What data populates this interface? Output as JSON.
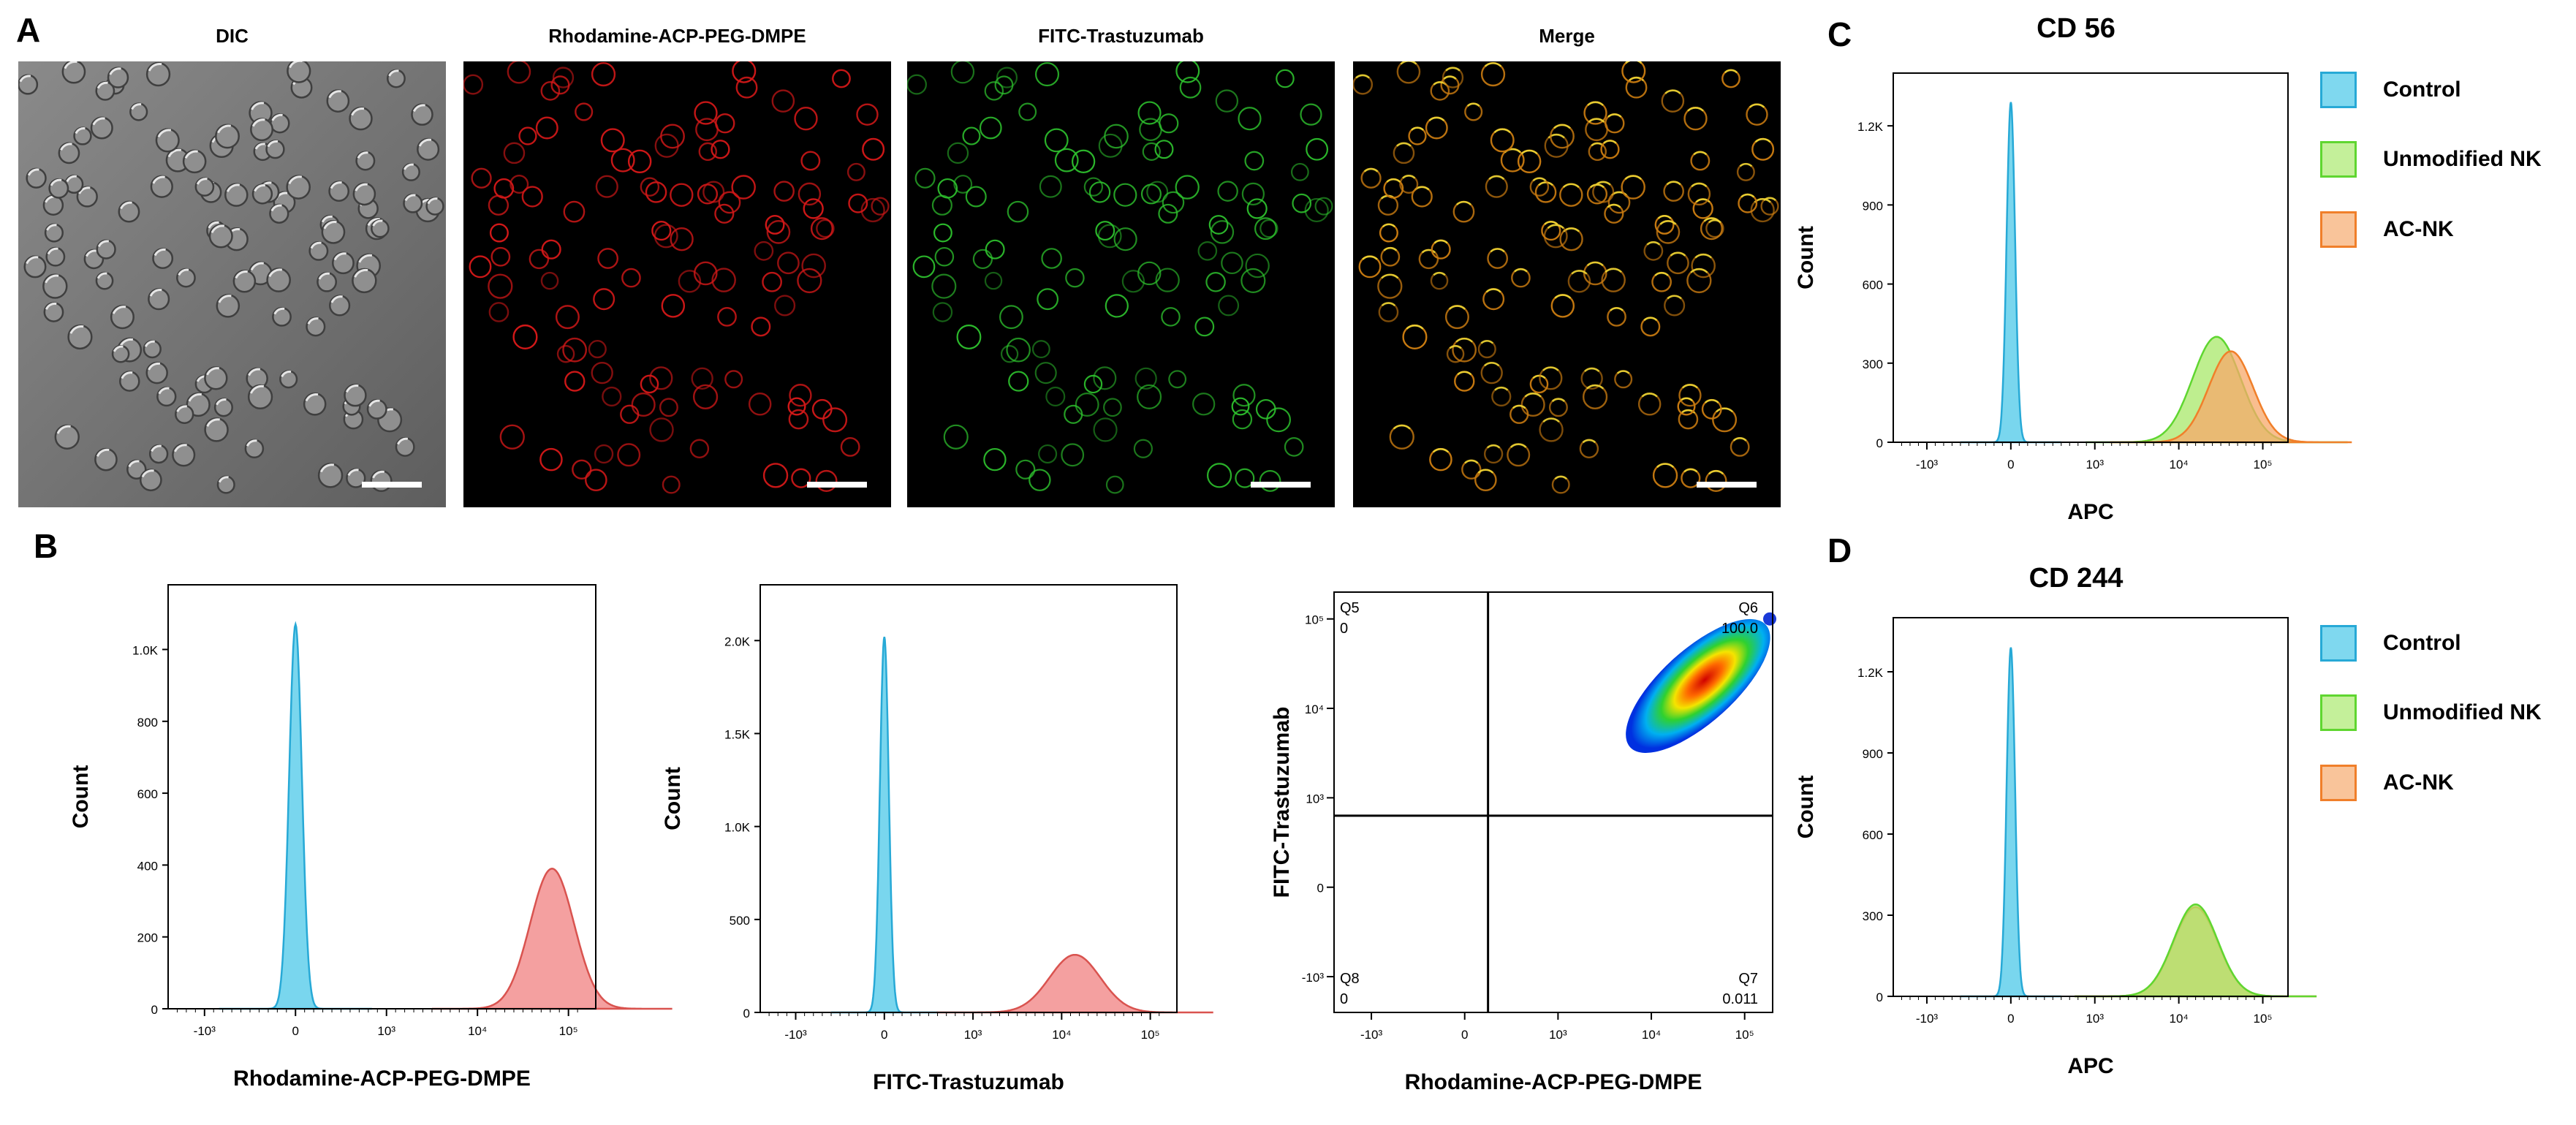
{
  "panel_labels": {
    "a": "A",
    "b": "B",
    "c": "C",
    "d": "D"
  },
  "micro_titles": [
    "DIC",
    "Rhodamine-ACP-PEG-DMPE",
    "FITC-Trastuzumab",
    "Merge"
  ],
  "colors": {
    "control": "#4cc8e8",
    "control_edge": "#27a9d6",
    "red": "#f08080",
    "red_edge": "#d9534f",
    "green": "#a8e86a",
    "green_edge": "#5fd630",
    "orange": "#f7a86a",
    "orange_edge": "#f07f2a",
    "dic_bg": "#7a7a7a",
    "dark_bg": "#000000"
  },
  "legend": {
    "control": "Control",
    "unmodified": "Unmodified NK",
    "acnk": "AC-NK"
  },
  "chart_data": [
    {
      "id": "b1",
      "type": "area",
      "ylabel": "Count",
      "xlabel": "Rhodamine-ACP-PEG-DMPE",
      "yticks": [
        "0",
        "200",
        "400",
        "600",
        "800",
        "1.0K"
      ],
      "ytick_values": [
        0,
        200,
        400,
        600,
        800,
        1000
      ],
      "ylim": [
        0,
        1180
      ],
      "xticks": [
        "-10³",
        "0",
        "10³",
        "10⁴",
        "10⁵"
      ],
      "series": [
        {
          "color_key": "control",
          "peak_x_decade": 0,
          "peak": 1070,
          "sigma": 0.07
        },
        {
          "color_key": "red",
          "peak_x_decade": 4.82,
          "peak": 390,
          "sigma": 0.11
        }
      ]
    },
    {
      "id": "b2",
      "type": "area",
      "ylabel": "Count",
      "xlabel": "FITC-Trastuzumab",
      "yticks": [
        "0",
        "500",
        "1.0K",
        "1.5K",
        "2.0K"
      ],
      "ytick_values": [
        0,
        500,
        1000,
        1500,
        2000
      ],
      "ylim": [
        0,
        2300
      ],
      "xticks": [
        "-10³",
        "0",
        "10³",
        "10⁴",
        "10⁵"
      ],
      "series": [
        {
          "color_key": "control",
          "peak_x_decade": 0,
          "peak": 2020,
          "sigma": 0.05
        },
        {
          "color_key": "red",
          "peak_x_decade": 4.15,
          "peak": 310,
          "sigma": 0.13
        }
      ]
    },
    {
      "id": "b3",
      "type": "scatter",
      "xlabel": "Rhodamine-ACP-PEG-DMPE",
      "ylabel": "FITC-Trastuzumab",
      "xticks": [
        "-10³",
        "0",
        "10³",
        "10⁴",
        "10⁵"
      ],
      "yticks": [
        "-10³",
        "0",
        "10³",
        "10⁴",
        "10⁵"
      ],
      "quadrants": {
        "Q5": {
          "name": "Q5",
          "value": "0"
        },
        "Q6": {
          "name": "Q6",
          "value": "100.0"
        },
        "Q7": {
          "name": "Q7",
          "value": "0.011"
        },
        "Q8": {
          "name": "Q8",
          "value": "0"
        }
      }
    },
    {
      "id": "c",
      "type": "area",
      "title": "CD 56",
      "ylabel": "Count",
      "xlabel": "APC",
      "yticks": [
        "0",
        "300",
        "600",
        "900",
        "1.2K"
      ],
      "ytick_values": [
        0,
        300,
        600,
        900,
        1200
      ],
      "ylim": [
        0,
        1400
      ],
      "xticks": [
        "-10³",
        "0",
        "10³",
        "10⁴",
        "10⁵"
      ],
      "series": [
        {
          "color_key": "control",
          "peak_x_decade": 0,
          "peak": 1290,
          "sigma": 0.05
        },
        {
          "color_key": "green",
          "peak_x_decade": 4.45,
          "peak": 400,
          "sigma": 0.13
        },
        {
          "color_key": "orange",
          "peak_x_decade": 4.62,
          "peak": 345,
          "sigma": 0.12
        }
      ]
    },
    {
      "id": "d",
      "type": "area",
      "title": "CD 244",
      "ylabel": "Count",
      "xlabel": "APC",
      "yticks": [
        "0",
        "300",
        "600",
        "900",
        "1.2K"
      ],
      "ytick_values": [
        0,
        300,
        600,
        900,
        1200
      ],
      "ylim": [
        0,
        1400
      ],
      "xticks": [
        "-10³",
        "0",
        "10³",
        "10⁴",
        "10⁵"
      ],
      "series": [
        {
          "color_key": "control",
          "peak_x_decade": 0,
          "peak": 1290,
          "sigma": 0.05
        },
        {
          "color_key": "orange",
          "peak_x_decade": 4.2,
          "peak": 330,
          "sigma": 0.12
        },
        {
          "color_key": "green",
          "peak_x_decade": 4.2,
          "peak": 340,
          "sigma": 0.12
        }
      ]
    }
  ]
}
